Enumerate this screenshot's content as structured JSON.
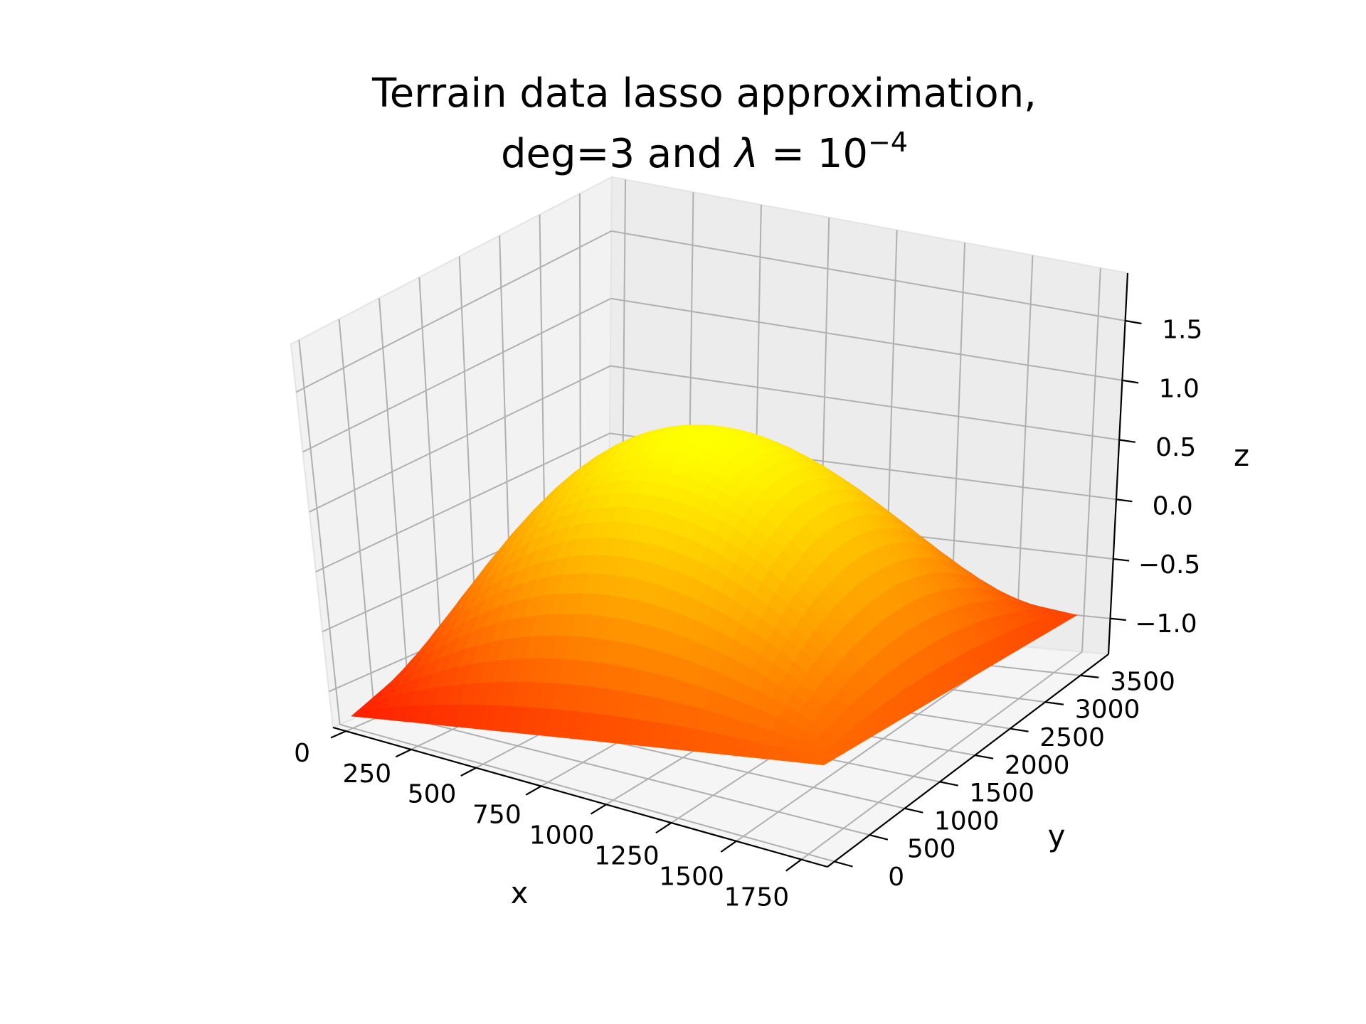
{
  "chart_data": {
    "type": "surface",
    "title_line1": "Terrain data lasso approximation,",
    "title_line2_prefix": "deg=3 and ",
    "title_lambda": "λ",
    "title_eq": " = ",
    "title_base": "10",
    "title_exp": "−4",
    "xlabel": "x",
    "ylabel": "y",
    "zlabel": "z",
    "xlim": [
      -50,
      1850
    ],
    "ylim": [
      -100,
      3900
    ],
    "zlim": [
      -1.3,
      1.9
    ],
    "x_ticks": [
      0,
      250,
      500,
      750,
      1000,
      1250,
      1500,
      1750
    ],
    "x_tick_labels": [
      "0",
      "250",
      "500",
      "750",
      "1000",
      "1250",
      "1500",
      "1750"
    ],
    "y_ticks": [
      0,
      500,
      1000,
      1500,
      2000,
      2500,
      3000,
      3500
    ],
    "y_tick_labels": [
      "0",
      "500",
      "1000",
      "1500",
      "2000",
      "2500",
      "3000",
      "3500"
    ],
    "z_ticks": [
      -1.0,
      -0.5,
      0.0,
      0.5,
      1.0,
      1.5
    ],
    "z_tick_labels": [
      "−1.0",
      "−0.5",
      "0.0",
      "0.5",
      "1.0",
      "1.5"
    ],
    "grid": true,
    "colormap": "autumn",
    "colors": {
      "low": "#ff0000",
      "high": "#ffff00",
      "pane": "#f2f2f2",
      "grid": "#b0b0b0"
    },
    "surface_x_range": [
      0,
      1800
    ],
    "surface_y_range": [
      0,
      3600
    ],
    "surface_corner_z": {
      "x0_y0": -1.2,
      "x1800_y0": -0.5,
      "x0_y3600": -0.4,
      "x1800_y3600": -0.85
    },
    "surface_peak_z": 0.95
  }
}
